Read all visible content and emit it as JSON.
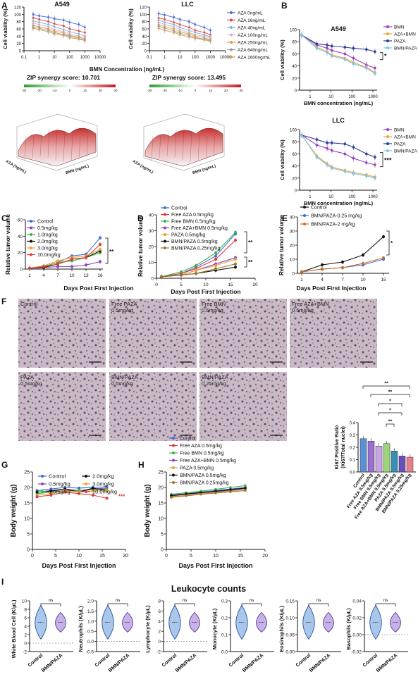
{
  "panels": {
    "A": {
      "letter": "A",
      "titles": [
        "A549",
        "LLC"
      ],
      "ylabel": "Cell viability (%)",
      "xlabel": "BMN Concentration (ng/mL)",
      "xticks": [
        "0.1",
        "1",
        "10",
        "100",
        "1000",
        "10000"
      ],
      "yticks": [
        "0",
        "20",
        "40",
        "60",
        "80",
        "100",
        "120"
      ],
      "legend": [
        "AZA 0ng/mL",
        "AZA 16ng/mL",
        "AZA 40ng/mL",
        "AZA 100ng/mL",
        "AZA 250ng/mL",
        "AZA 640ng/mL",
        "AZA 1600ng/mL"
      ],
      "legend_colors": [
        "#4a6fd9",
        "#e04646",
        "#7db3d9",
        "#d8b0d9",
        "#e0a040",
        "#9a9a9a",
        "#c8a060"
      ],
      "zip_labels": [
        "ZIP synergy score: 10.701",
        "ZIP synergy score: 13.495"
      ],
      "colorbar_ticks": [
        "-30",
        "-20",
        "-10",
        "0",
        "10",
        "20",
        "30"
      ],
      "surface_axis": [
        "AZA (ng/mL)",
        "BMN (ng/mL)"
      ]
    },
    "B": {
      "letter": "B",
      "titles": [
        "A549",
        "LLC"
      ],
      "ylabel": "Cell viability (%)",
      "xlabel": "BMN concentration (ng/mL)",
      "xticks": [
        "1",
        "10",
        "100",
        "1000"
      ],
      "yticks": [
        "0",
        "20",
        "40",
        "60",
        "80",
        "100"
      ],
      "legend": [
        "BMN",
        "AZA+BMN",
        "PAZA",
        "BMN/PAZA"
      ],
      "legend_colors": [
        "#9b3cc9",
        "#e7a63c",
        "#2b3b9e",
        "#7cc6e8"
      ],
      "sig": [
        "*",
        "***"
      ]
    },
    "C": {
      "letter": "C",
      "ylabel": "Relative tumor volume",
      "xticks": [
        "1",
        "4",
        "7",
        "10",
        "13",
        "16"
      ],
      "yticks": [
        "0",
        "20",
        "40",
        "60"
      ],
      "legend": [
        "Control",
        "0.5mg/kg",
        "1.0mg/kg",
        "2.0mg/kg",
        "3.0mg/kg",
        "10.0mg/kg"
      ],
      "legend_colors": [
        "#3a6fd4",
        "#8a44c0",
        "#3cb44b",
        "#111111",
        "#f0a030",
        "#e23a3a"
      ],
      "sig": "**"
    },
    "D": {
      "letter": "D",
      "ylabel": "Relative tumor volume",
      "xlabel": "Days Post First Injection",
      "xticks": [
        "0",
        "5",
        "10",
        "15",
        "20"
      ],
      "yticks": [
        "0",
        "10",
        "20",
        "30",
        "40"
      ],
      "legend": [
        "Control",
        "Free AZA 0.5mg/kg",
        "Free BMN 0.5mg/kg",
        "Free AZA+BMN 0.5mg/kg",
        "PAZA 0.5mg/kg",
        "BMN/PAZA 0.5mg/kg",
        "BMN/PAZA 0.25mg/kg"
      ],
      "legend_colors": [
        "#3a6fd4",
        "#e23a3a",
        "#3cb44b",
        "#8a44c0",
        "#f0a030",
        "#111111",
        "#a07830"
      ],
      "sig": [
        "**",
        "**"
      ]
    },
    "E": {
      "letter": "E",
      "ylabel": "Relative tumor volume",
      "xticks": [
        "1",
        "4",
        "7",
        "10",
        "15"
      ],
      "yticks": [
        "0",
        "10",
        "20",
        "30",
        "40"
      ],
      "legend": [
        "Control",
        "BMN/PAZA-0.25 mg/kg",
        "BMN/PAZA-2 mg/kg"
      ],
      "legend_colors": [
        "#111111",
        "#3a6fd4",
        "#d06a20"
      ],
      "sig": "*"
    },
    "F": {
      "letter": "F",
      "images": [
        "Control",
        "Free PAZA\n0.5mg/kg",
        "Free BMN\n0.5mg/kg",
        "Free AZA+BMN\n0.5mg/kg",
        "PAZA\n0.5mg/kg",
        "BMN/PAZA\n0.5mg/kg",
        "BMN/PAZA\n0.25mg/kg"
      ],
      "ylabel": "Ki67 Positive Ratio\n(Ki67/Total nuclei)",
      "categories": [
        "Control",
        "Free AZA 0.5mg/kg",
        "Free BMN 0.5mg/kg",
        "Free AZA+BMN 0.5mg/kg",
        "PAZA 0.5mg/kg",
        "BMN/PAZA 0.5mg/kg",
        "BMN/PAZA 0.25mg/kg"
      ],
      "yticks": [
        "0.0",
        "0.1",
        "0.2",
        "0.3",
        "0.4"
      ],
      "sig": [
        "**",
        "**",
        "*",
        "*",
        "**"
      ]
    },
    "G": {
      "letter": "G",
      "ylabel": "Body weight (g)",
      "xlabel": "Days Post First Injection",
      "xticks": [
        "0",
        "5",
        "10",
        "15",
        "20"
      ],
      "yticks": [
        "0",
        "5",
        "10",
        "15",
        "20",
        "25"
      ],
      "legend": [
        "Control",
        "0.5mg/kg",
        "1.0mg/kg",
        "2.0mg/kg",
        "3.0mg/kg",
        "10.0mg/kg"
      ],
      "legend_colors": [
        "#3a6fd4",
        "#8a44c0",
        "#3cb44b",
        "#111111",
        "#f0a030",
        "#e23a3a"
      ],
      "sig": "***"
    },
    "H": {
      "letter": "H",
      "ylabel": "Body weight (g)",
      "xlabel": "Days Post First Injection",
      "xticks": [
        "0",
        "5",
        "10",
        "15",
        "20"
      ],
      "yticks": [
        "0",
        "5",
        "10",
        "15",
        "20",
        "25"
      ],
      "legend": [
        "Control",
        "Free AZA 0.5mg/kg",
        "Free BMN 0.5mg/kg",
        "Free AZA+BMN 0.5mg/kg",
        "PAZA 0.5mg/kg",
        "BMN/PAZA 0.5mg/kg",
        "BMN/PAZA 0.25mg/kg"
      ],
      "legend_colors": [
        "#3a6fd4",
        "#e23a3a",
        "#3cb44b",
        "#8a44c0",
        "#f0a030",
        "#111111",
        "#a07830"
      ]
    },
    "I": {
      "letter": "I",
      "title": "Leukocyte counts",
      "groups": [
        "Control",
        "BMN/PAZA"
      ],
      "ns": "ns",
      "plots": [
        {
          "ylabel": "White Blood Cell (K/µL)",
          "yticks": [
            "-2",
            "0",
            "2",
            "4",
            "6",
            "8",
            "10"
          ]
        },
        {
          "ylabel": "Neutrophils (K/µL)",
          "yticks": [
            "-0.5",
            "0.0",
            "0.5",
            "1.0",
            "1.5",
            "2.0"
          ]
        },
        {
          "ylabel": "Lymphocyte (K/µL)",
          "yticks": [
            "-2",
            "0",
            "2",
            "4",
            "6",
            "8"
          ]
        },
        {
          "ylabel": "Monocyte (K/µL)",
          "yticks": [
            "0.0",
            "0.1",
            "0.2",
            "0.3"
          ]
        },
        {
          "ylabel": "Eosinophils (K/µL)",
          "yticks": [
            "0.00",
            "0.05",
            "0.10",
            "0.15"
          ]
        },
        {
          "ylabel": "Basophils (K/µL)",
          "yticks": [
            "-0.02",
            "0.00",
            "0.02",
            "0.04"
          ]
        }
      ]
    }
  },
  "chart_data": [
    {
      "id": "A-A549",
      "type": "line",
      "x": [
        0.4,
        1,
        4,
        10,
        40,
        100,
        400,
        1000
      ],
      "series": [
        {
          "name": "AZA 0ng/mL",
          "values": [
            100,
            96,
            92,
            88,
            84,
            78,
            72,
            64
          ]
        },
        {
          "name": "AZA 16ng/mL",
          "values": [
            90,
            86,
            80,
            74,
            68,
            60,
            54,
            50
          ]
        },
        {
          "name": "AZA 40ng/mL",
          "values": [
            82,
            78,
            72,
            66,
            58,
            52,
            46,
            40
          ]
        },
        {
          "name": "AZA 100ng/mL",
          "values": [
            76,
            72,
            66,
            58,
            52,
            46,
            40,
            36
          ]
        },
        {
          "name": "AZA 250ng/mL",
          "values": [
            70,
            66,
            60,
            54,
            48,
            42,
            38,
            32
          ]
        },
        {
          "name": "AZA 640ng/mL",
          "values": [
            66,
            62,
            56,
            50,
            44,
            40,
            34,
            30
          ]
        },
        {
          "name": "AZA 1600ng/mL",
          "values": [
            62,
            58,
            52,
            46,
            42,
            36,
            32,
            28
          ]
        }
      ]
    },
    {
      "id": "A-LLC",
      "type": "line",
      "x": [
        0.4,
        1,
        4,
        10,
        40,
        100,
        400,
        1000
      ],
      "series": [
        {
          "name": "AZA 0ng/mL",
          "values": [
            102,
            98,
            92,
            86,
            80,
            72,
            64,
            56
          ]
        },
        {
          "name": "AZA 16ng/mL",
          "values": [
            90,
            86,
            78,
            72,
            64,
            56,
            50,
            44
          ]
        },
        {
          "name": "AZA 40ng/mL",
          "values": [
            84,
            78,
            72,
            64,
            56,
            50,
            44,
            38
          ]
        },
        {
          "name": "AZA 100ng/mL",
          "values": [
            78,
            72,
            66,
            58,
            50,
            44,
            40,
            34
          ]
        },
        {
          "name": "AZA 250ng/mL",
          "values": [
            72,
            66,
            60,
            52,
            46,
            40,
            36,
            30
          ]
        },
        {
          "name": "AZA 640ng/mL",
          "values": [
            68,
            62,
            54,
            48,
            42,
            36,
            32,
            28
          ]
        },
        {
          "name": "AZA 1600ng/mL",
          "values": [
            62,
            56,
            50,
            44,
            38,
            34,
            30,
            26
          ]
        }
      ]
    },
    {
      "id": "B-A549",
      "type": "line",
      "x": [
        0.4,
        2,
        6,
        10,
        40,
        100,
        400,
        1000
      ],
      "series": [
        {
          "name": "BMN",
          "values": [
            100,
            82,
            76,
            72,
            66,
            58,
            46,
            40
          ]
        },
        {
          "name": "AZA+BMN",
          "values": [
            100,
            78,
            70,
            64,
            58,
            50,
            42,
            32
          ]
        },
        {
          "name": "PAZA",
          "values": [
            100,
            84,
            82,
            80,
            78,
            76,
            74,
            70
          ]
        },
        {
          "name": "BMN/PAZA",
          "values": [
            100,
            76,
            68,
            62,
            56,
            48,
            40,
            30
          ]
        }
      ]
    },
    {
      "id": "B-LLC",
      "type": "line",
      "x": [
        0.4,
        2,
        6,
        10,
        40,
        100,
        400,
        1000
      ],
      "series": [
        {
          "name": "BMN",
          "values": [
            100,
            82,
            76,
            72,
            66,
            58,
            50,
            46
          ]
        },
        {
          "name": "AZA+BMN",
          "values": [
            100,
            62,
            48,
            42,
            36,
            32,
            28,
            24
          ]
        },
        {
          "name": "PAZA",
          "values": [
            100,
            92,
            86,
            86,
            84,
            78,
            66,
            60
          ]
        },
        {
          "name": "BMN/PAZA",
          "values": [
            100,
            60,
            46,
            40,
            34,
            30,
            26,
            22
          ]
        }
      ]
    },
    {
      "id": "C",
      "type": "line",
      "x": [
        1,
        4,
        7,
        10,
        13,
        16
      ],
      "series": [
        {
          "name": "Control",
          "values": [
            1,
            3,
            8,
            16,
            18,
            38
          ]
        },
        {
          "name": "0.5mg/kg",
          "values": [
            1,
            2,
            3,
            3,
            5,
            9
          ]
        },
        {
          "name": "1.0mg/kg",
          "values": [
            1,
            3,
            8,
            10,
            14,
            20
          ]
        },
        {
          "name": "2.0mg/kg",
          "values": [
            1,
            2,
            6,
            12,
            14,
            22
          ]
        },
        {
          "name": "3.0mg/kg",
          "values": [
            1,
            4,
            10,
            14,
            16,
            24
          ]
        },
        {
          "name": "10.0mg/kg",
          "values": [
            1,
            3,
            6,
            12,
            14,
            30
          ]
        }
      ]
    },
    {
      "id": "D",
      "type": "line",
      "x": [
        1,
        5,
        8,
        12,
        16
      ],
      "series": [
        {
          "name": "Control",
          "values": [
            1,
            3,
            7,
            14,
            28
          ]
        },
        {
          "name": "Free AZA 0.5mg/kg",
          "values": [
            1,
            3,
            6,
            12,
            24
          ]
        },
        {
          "name": "Free BMN 0.5mg/kg",
          "values": [
            1,
            4,
            8,
            16,
            29
          ]
        },
        {
          "name": "Free AZA+BMN 0.5mg/kg",
          "values": [
            1,
            2,
            5,
            9,
            13
          ]
        },
        {
          "name": "PAZA 0.5mg/kg",
          "values": [
            1,
            2,
            5,
            8,
            12
          ]
        },
        {
          "name": "BMN/PAZA 0.5mg/kg",
          "values": [
            1,
            2,
            3,
            5,
            7
          ]
        },
        {
          "name": "BMN/PAZA 0.25mg/kg",
          "values": [
            1,
            2,
            3,
            6,
            9
          ]
        }
      ]
    },
    {
      "id": "E",
      "type": "line",
      "x": [
        1,
        4,
        7,
        10,
        15
      ],
      "series": [
        {
          "name": "Control",
          "values": [
            1,
            6,
            8,
            13,
            26
          ]
        },
        {
          "name": "BMN/PAZA-0.25 mg/kg",
          "values": [
            1,
            3,
            4,
            6,
            10
          ]
        },
        {
          "name": "BMN/PAZA-2 mg/kg",
          "values": [
            1,
            3,
            4,
            7,
            11
          ]
        }
      ]
    },
    {
      "id": "F",
      "type": "bar",
      "categories": [
        "Control",
        "Free AZA 0.5mg/kg",
        "Free BMN 0.5mg/kg",
        "Free AZA+BMN 0.5mg/kg",
        "PAZA 0.5mg/kg",
        "BMN/PAZA 0.5mg/kg",
        "BMN/PAZA 0.25mg/kg"
      ],
      "values": [
        0.27,
        0.25,
        0.21,
        0.23,
        0.17,
        0.13,
        0.12
      ],
      "colors": [
        "#5b8fd6",
        "#9a6fd0",
        "#c9a6e3",
        "#9dd47a",
        "#3a8fb5",
        "#6b4fb8",
        "#e87e8a"
      ],
      "ylim": [
        0,
        0.4
      ]
    },
    {
      "id": "G",
      "type": "line",
      "x": [
        1,
        4,
        7,
        10,
        13,
        16
      ],
      "series": [
        {
          "name": "Control",
          "values": [
            19,
            19.5,
            20,
            19.8,
            20,
            20.2
          ]
        },
        {
          "name": "0.5mg/kg",
          "values": [
            18.5,
            19,
            19.5,
            19,
            19.5,
            19.8
          ]
        },
        {
          "name": "1.0mg/kg",
          "values": [
            18,
            18.5,
            19,
            19,
            19.2,
            19.5
          ]
        },
        {
          "name": "2.0mg/kg",
          "values": [
            18.5,
            18.8,
            19.5,
            18.5,
            19.8,
            19
          ]
        },
        {
          "name": "3.0mg/kg",
          "values": [
            17.5,
            18,
            19,
            18.5,
            18.8,
            19
          ]
        },
        {
          "name": "10.0mg/kg",
          "values": [
            17,
            17.5,
            18.5,
            18,
            17.5,
            16.5
          ]
        }
      ]
    },
    {
      "id": "H",
      "type": "line",
      "x": [
        1,
        4,
        7,
        10,
        13,
        16
      ],
      "series": [
        {
          "name": "Control",
          "values": [
            17.5,
            18,
            18.5,
            19,
            19.5,
            20
          ]
        },
        {
          "name": "Free AZA 0.5mg/kg",
          "values": [
            17.2,
            17.8,
            18.2,
            18.8,
            19.2,
            19.8
          ]
        },
        {
          "name": "Free BMN 0.5mg/kg",
          "values": [
            17.8,
            18.3,
            18.8,
            19.4,
            20,
            20.6
          ]
        },
        {
          "name": "Free AZA+BMN 0.5mg/kg",
          "values": [
            17.3,
            17.8,
            18.2,
            18.6,
            19,
            19.6
          ]
        },
        {
          "name": "PAZA 0.5mg/kg",
          "values": [
            17,
            17.5,
            18,
            18.4,
            18.8,
            19.4
          ]
        },
        {
          "name": "BMN/PAZA 0.5mg/kg",
          "values": [
            17.4,
            17.9,
            18.3,
            18.8,
            19.3,
            19.8
          ]
        },
        {
          "name": "BMN/PAZA 0.25mg/kg",
          "values": [
            16.8,
            17.3,
            17.8,
            18.2,
            18.6,
            19
          ]
        }
      ]
    }
  ]
}
